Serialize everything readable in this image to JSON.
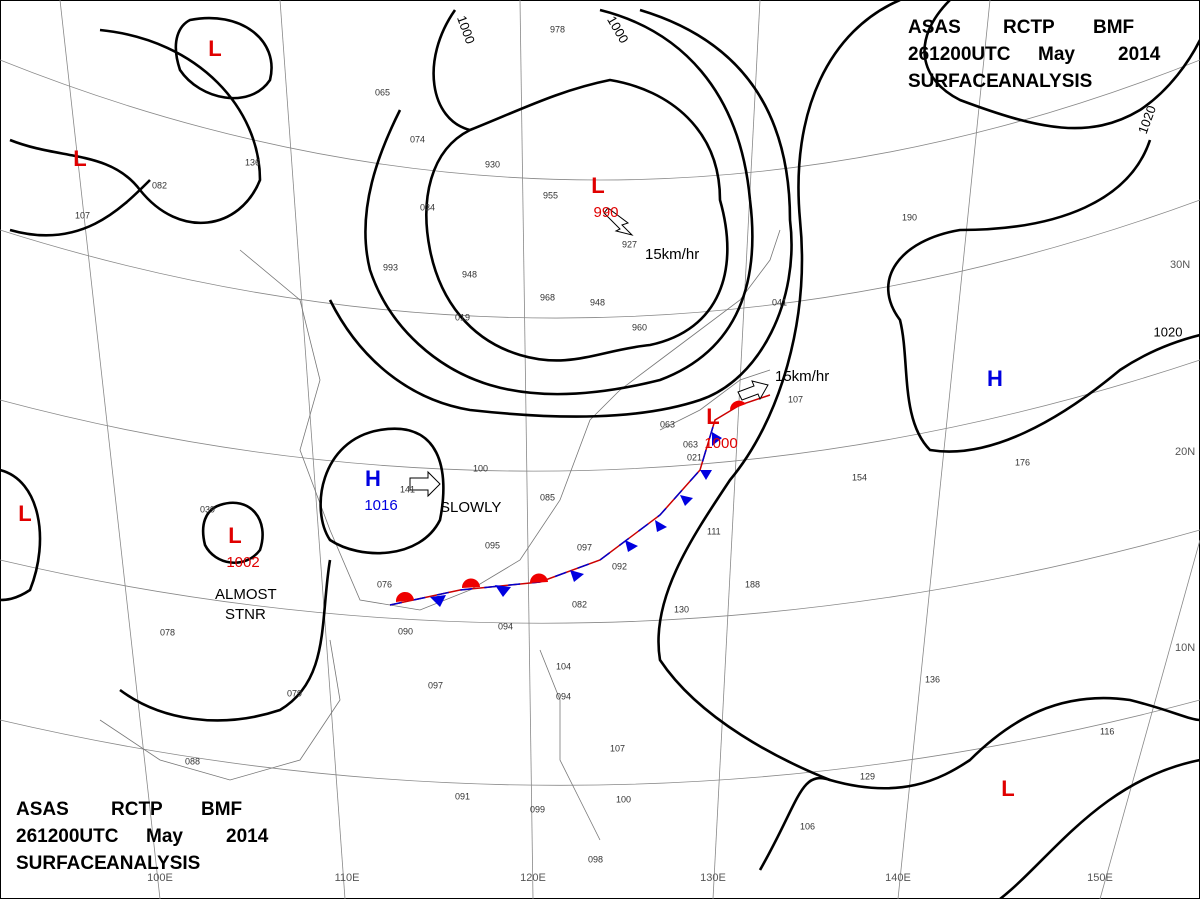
{
  "header": {
    "lines": [
      "ASAS",
      "RCTP",
      "BMF",
      "261200UTC",
      "May",
      "2014",
      "SURFACE",
      "ANALYSIS"
    ]
  },
  "pressure_centers": [
    {
      "symbol": "L"
    },
    {
      "symbol": "L"
    },
    {
      "symbol": "L",
      "value": 990
    },
    {
      "symbol": "L"
    },
    {
      "symbol": "L",
      "value": 1002
    },
    {
      "symbol": "H",
      "value": 1016
    },
    {
      "symbol": "L",
      "value": 1000
    },
    {
      "symbol": "H"
    },
    {
      "symbol": "L"
    }
  ],
  "isobar_labels": [
    1000,
    1000,
    1020,
    1020
  ],
  "latitude_labels": [
    "30N",
    "20N",
    "10N"
  ],
  "longitude_labels": [
    "100E",
    "110E",
    "120E",
    "130E",
    "140E",
    "150E"
  ],
  "annotations": [
    "15km/hr",
    "15km/hr",
    "SLOWLY",
    "ALMOST",
    "STNR"
  ],
  "stations": [
    "978",
    "930",
    "955",
    "927",
    "948",
    "968",
    "948",
    "960",
    "019",
    "993",
    "034",
    "074",
    "065",
    "136",
    "082",
    "107",
    "039",
    "095",
    "097",
    "076",
    "090",
    "094",
    "082",
    "092",
    "111",
    "188",
    "130",
    "136",
    "116",
    "129",
    "106",
    "098",
    "099",
    "091",
    "079",
    "097",
    "104",
    "094",
    "107",
    "100",
    "085",
    "141",
    "100",
    "063",
    "021",
    "190",
    "041",
    "107",
    "154",
    "176",
    "088",
    "078",
    "063"
  ]
}
